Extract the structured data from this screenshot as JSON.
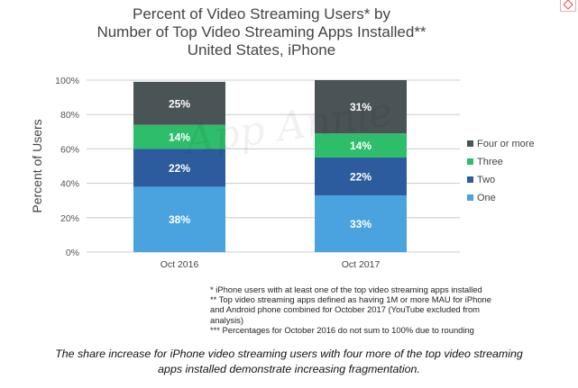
{
  "title_lines": [
    "Percent of Video Streaming Users* by",
    "Number of Top Video Streaming Apps Installed**",
    "United States, iPhone"
  ],
  "watermark": "App Annie",
  "footnotes": [
    "* iPhone users with at least one of the top video streaming apps installed",
    "** Top video streaming apps defined as having 1M or more MAU for iPhone",
    "and Android phone combined for October 2017 (YouTube excluded from",
    "analysis)",
    "*** Percentages for October 2016 do not sum to 100% due to rounding"
  ],
  "caption_lines": [
    "The share increase for iPhone video streaming users with four more of the top video streaming",
    "apps installed demonstrate increasing fragmentation."
  ],
  "colors": {
    "One": "#4aa3df",
    "Two": "#2d5c9e",
    "Three": "#2ebd6b",
    "Four or more": "#4a5356",
    "grid": "#cccccc",
    "label": "#ffffff"
  },
  "chart_data": {
    "type": "bar",
    "stacked": true,
    "categories": [
      "Oct 2016",
      "Oct 2017"
    ],
    "series": [
      {
        "name": "One",
        "values": [
          38,
          33
        ]
      },
      {
        "name": "Two",
        "values": [
          22,
          22
        ]
      },
      {
        "name": "Three",
        "values": [
          14,
          14
        ]
      },
      {
        "name": "Four or more",
        "values": [
          25,
          31
        ]
      }
    ],
    "value_labels": [
      [
        "38%",
        "33%"
      ],
      [
        "22%",
        "22%"
      ],
      [
        "14%",
        "14%"
      ],
      [
        "25%",
        "31%"
      ]
    ],
    "ylabel": "Percent of Users",
    "ylim": [
      0,
      100
    ],
    "yticks": [
      "0%",
      "20%",
      "40%",
      "60%",
      "80%",
      "100%"
    ],
    "ytick_values": [
      0,
      20,
      40,
      60,
      80,
      100
    ],
    "grid": true,
    "legend_position": "right",
    "legend_order": [
      "Four or more",
      "Three",
      "Two",
      "One"
    ]
  }
}
